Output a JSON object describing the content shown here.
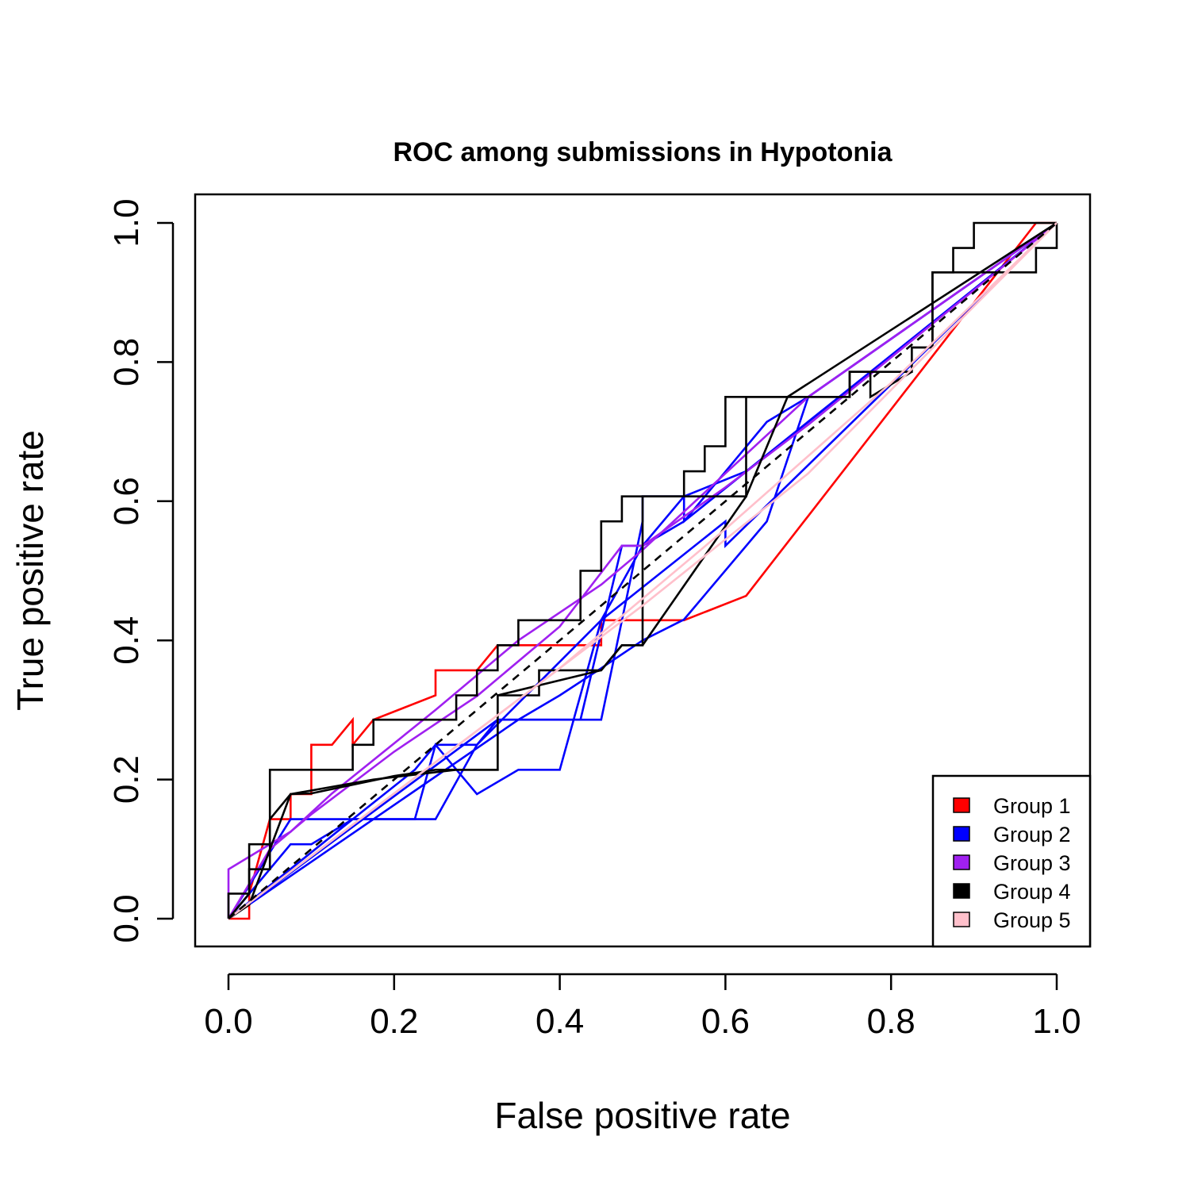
{
  "chart_data": {
    "type": "line",
    "title": "ROC among submissions in Hypotonia",
    "xlabel": "False positive rate",
    "ylabel": "True positive rate",
    "xlim": [
      0,
      1
    ],
    "ylim": [
      0,
      1
    ],
    "x_ticks": [
      "0.0",
      "0.2",
      "0.4",
      "0.6",
      "0.8",
      "1.0"
    ],
    "y_ticks": [
      "0.0",
      "0.2",
      "0.4",
      "0.6",
      "0.8",
      "1.0"
    ],
    "x_tick_values": [
      0,
      0.2,
      0.4,
      0.6,
      0.8,
      1.0
    ],
    "y_tick_values": [
      0,
      0.2,
      0.4,
      0.6,
      0.8,
      1.0
    ],
    "grid": false,
    "legend_position": "bottom-right",
    "legend": [
      {
        "label": "Group 1",
        "color": "#ff0000"
      },
      {
        "label": "Group 2",
        "color": "#0000ff"
      },
      {
        "label": "Group 3",
        "color": "#a020f0"
      },
      {
        "label": "Group 4",
        "color": "#000000"
      },
      {
        "label": "Group 5",
        "color": "#ffc0cb"
      }
    ],
    "reference_line": {
      "x": [
        0,
        1
      ],
      "y": [
        0,
        1
      ],
      "color": "#000000",
      "dashed": true
    },
    "series": [
      {
        "group": 1,
        "color": "#ff0000",
        "x": [
          0,
          0.025,
          0.025,
          0.05,
          0.075,
          0.075,
          0.1,
          0.1,
          0.125,
          0.15,
          0.15,
          0.175,
          0.175,
          0.25,
          0.25,
          0.3,
          0.325,
          0.325,
          0.45,
          0.45,
          0.55,
          0.625,
          0.975,
          1.0
        ],
        "y": [
          0,
          0,
          0.036,
          0.143,
          0.143,
          0.179,
          0.179,
          0.25,
          0.25,
          0.286,
          0.25,
          0.286,
          0.286,
          0.321,
          0.357,
          0.357,
          0.393,
          0.393,
          0.393,
          0.429,
          0.429,
          0.464,
          1.0,
          1.0
        ]
      },
      {
        "group": 2,
        "color": "#0000ff",
        "x": [
          0,
          0.075,
          0.1,
          0.15,
          0.225,
          0.225,
          0.25,
          0.3,
          0.3,
          0.35,
          0.4,
          0.45,
          0.6,
          0.6,
          1.0
        ],
        "y": [
          0,
          0.107,
          0.107,
          0.143,
          0.143,
          0.143,
          0.25,
          0.179,
          0.179,
          0.214,
          0.214,
          0.429,
          0.571,
          0.536,
          1.0
        ]
      },
      {
        "group": 2,
        "color": "#0000ff",
        "x": [
          0,
          0.075,
          0.15,
          0.25,
          0.3,
          0.325,
          0.45,
          0.5,
          0.5,
          0.55,
          0.55,
          1.0
        ],
        "y": [
          0,
          0.143,
          0.143,
          0.143,
          0.25,
          0.286,
          0.286,
          0.571,
          0.607,
          0.607,
          0.571,
          1.0
        ]
      },
      {
        "group": 2,
        "color": "#0000ff",
        "x": [
          0,
          0.15,
          0.225,
          0.25,
          0.275,
          0.3,
          0.45,
          0.45,
          0.5,
          0.5,
          0.55,
          0.625,
          0.625,
          1.0
        ],
        "y": [
          0,
          0.143,
          0.214,
          0.25,
          0.25,
          0.25,
          0.429,
          0.429,
          0.536,
          0.536,
          0.607,
          0.643,
          0.643,
          1.0
        ]
      },
      {
        "group": 2,
        "color": "#0000ff",
        "x": [
          0,
          0.325,
          0.4,
          0.425,
          0.475,
          0.5,
          0.55,
          0.65,
          0.7,
          0.7,
          1.0
        ],
        "y": [
          0,
          0.286,
          0.286,
          0.286,
          0.536,
          0.536,
          0.571,
          0.714,
          0.75,
          0.75,
          1.0
        ]
      },
      {
        "group": 2,
        "color": "#0000ff",
        "x": [
          0,
          0.35,
          0.4,
          0.45,
          0.5,
          0.55,
          0.65,
          0.7,
          1.0
        ],
        "y": [
          0,
          0.286,
          0.321,
          0.36,
          0.4,
          0.43,
          0.571,
          0.75,
          1.0
        ]
      },
      {
        "group": 3,
        "color": "#a020f0",
        "x": [
          0,
          0,
          0.075,
          0.125,
          0.25,
          0.35,
          0.45,
          0.5,
          0.6,
          0.7,
          1.0
        ],
        "y": [
          0,
          0.071,
          0.125,
          0.18,
          0.3,
          0.4,
          0.48,
          0.53,
          0.64,
          0.75,
          1.0
        ]
      },
      {
        "group": 3,
        "color": "#a020f0",
        "x": [
          0,
          0.05,
          0.1,
          0.2,
          0.3,
          0.4,
          0.475,
          0.5,
          0.6,
          0.7,
          1.0
        ],
        "y": [
          0,
          0.1,
          0.15,
          0.24,
          0.32,
          0.42,
          0.536,
          0.536,
          0.62,
          0.71,
          1.0
        ]
      },
      {
        "group": 4,
        "color": "#000000",
        "x": [
          0,
          0,
          0.025,
          0.025,
          0.05,
          0.05,
          0.1,
          0.15,
          0.15,
          0.175,
          0.175,
          0.275,
          0.275,
          0.3,
          0.3,
          0.325,
          0.325,
          0.35,
          0.35,
          0.425,
          0.425,
          0.45,
          0.45,
          0.475,
          0.475,
          0.5,
          0.5,
          0.55,
          0.55,
          0.575,
          0.575,
          0.6,
          0.6,
          0.625,
          0.625,
          0.675,
          0.675,
          0.75,
          0.75,
          0.775,
          0.775,
          0.825,
          0.825,
          0.85,
          0.85,
          0.875,
          0.875,
          0.9,
          0.9,
          1.0
        ],
        "y": [
          0,
          0.036,
          0.036,
          0.107,
          0.107,
          0.214,
          0.214,
          0.214,
          0.25,
          0.25,
          0.286,
          0.286,
          0.321,
          0.321,
          0.357,
          0.357,
          0.393,
          0.393,
          0.429,
          0.429,
          0.5,
          0.5,
          0.571,
          0.571,
          0.607,
          0.607,
          0.607,
          0.607,
          0.643,
          0.643,
          0.679,
          0.679,
          0.75,
          0.75,
          0.75,
          0.75,
          0.75,
          0.75,
          0.786,
          0.786,
          0.786,
          0.786,
          0.821,
          0.821,
          0.929,
          0.929,
          0.964,
          0.964,
          1.0,
          1.0
        ]
      },
      {
        "group": 4,
        "color": "#000000",
        "x": [
          0,
          0.025,
          0.025,
          0.05,
          0.05,
          0.075,
          0.1,
          0.2,
          0.25,
          0.325,
          0.325,
          0.375,
          0.375,
          0.45,
          0.475,
          0.5,
          0.5,
          0.625,
          0.625,
          0.75,
          0.75,
          0.775,
          0.775,
          0.825,
          0.825,
          0.85,
          0.85,
          0.875,
          0.975,
          0.975,
          1.0,
          1.0
        ],
        "y": [
          0,
          0.036,
          0.071,
          0.071,
          0.143,
          0.179,
          0.18,
          0.205,
          0.214,
          0.214,
          0.321,
          0.321,
          0.357,
          0.357,
          0.393,
          0.393,
          0.607,
          0.607,
          0.75,
          0.75,
          0.786,
          0.786,
          0.75,
          0.786,
          0.821,
          0.821,
          0.929,
          0.929,
          0.929,
          0.964,
          0.964,
          1.0
        ]
      },
      {
        "group": 4,
        "color": "#000000",
        "x": [
          0,
          0.025,
          0.075,
          0.175,
          0.275,
          0.325,
          0.325,
          0.45,
          0.475,
          0.5,
          0.625,
          0.675,
          1.0
        ],
        "y": [
          0,
          0.02,
          0.179,
          0.2,
          0.214,
          0.214,
          0.321,
          0.357,
          0.393,
          0.393,
          0.607,
          0.75,
          1.0
        ]
      },
      {
        "group": 5,
        "color": "#ffc0cb",
        "x": [
          0,
          0.2,
          0.4,
          0.6,
          0.8,
          1.0
        ],
        "y": [
          0,
          0.18,
          0.36,
          0.56,
          0.77,
          1.0
        ]
      },
      {
        "group": 5,
        "color": "#ffc0cb",
        "x": [
          0,
          0.3,
          0.5,
          0.7,
          0.85,
          1.0
        ],
        "y": [
          0,
          0.27,
          0.45,
          0.64,
          0.82,
          1.0
        ]
      }
    ]
  }
}
